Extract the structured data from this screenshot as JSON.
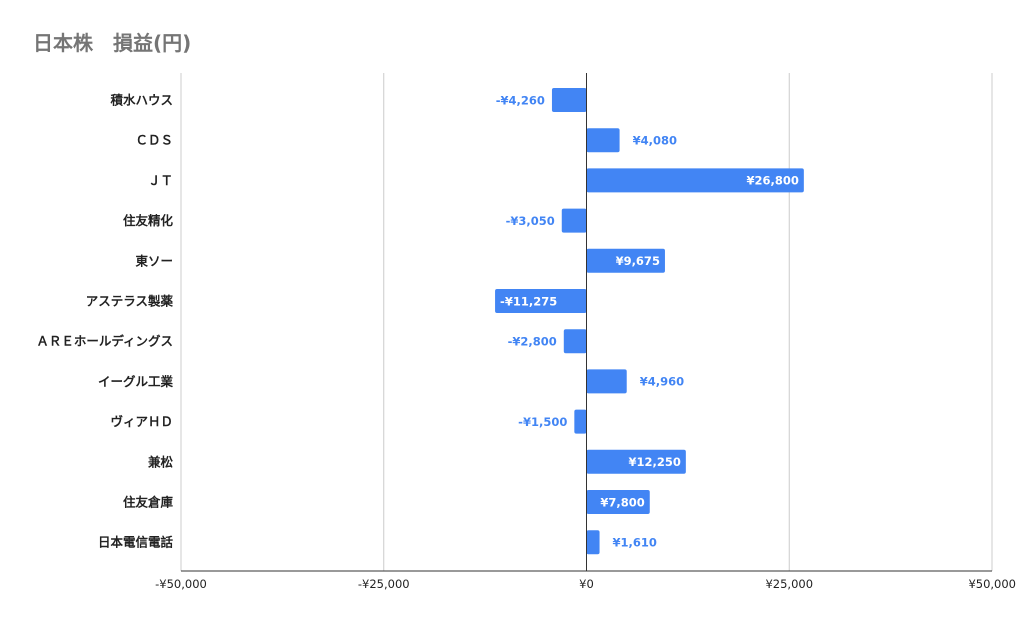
{
  "chart_data": {
    "type": "bar",
    "orientation": "horizontal",
    "title": "日本株　損益(円)",
    "categories": [
      "積水ハウス",
      "ＣＤＳ",
      "ＪＴ",
      "住友精化",
      "東ソー",
      "アステラス製薬",
      "ＡＲＥホールディングス",
      "イーグル工業",
      "ヴィアＨＤ",
      "兼松",
      "住友倉庫",
      "日本電信電話"
    ],
    "values": [
      -4260,
      4080,
      26800,
      -3050,
      9675,
      -11275,
      -2800,
      4960,
      -1500,
      12250,
      7800,
      1610
    ],
    "data_labels": [
      "-¥4,260",
      "¥4,080",
      "¥26,800",
      "-¥3,050",
      "¥9,675",
      "-¥11,275",
      "-¥2,800",
      "¥4,960",
      "-¥1,500",
      "¥12,250",
      "¥7,800",
      "¥1,610"
    ],
    "xlim": [
      -50000,
      50000
    ],
    "x_ticks": [
      -50000,
      -25000,
      0,
      25000,
      50000
    ],
    "x_tick_labels": [
      "-¥50,000",
      "-¥25,000",
      "¥0",
      "¥25,000",
      "¥50,000"
    ],
    "grid": true,
    "legend": "none",
    "colors": {
      "bar": "#4285f4",
      "label_outside": "#4285f4",
      "label_inside": "#ffffff",
      "grid": "#cccccc",
      "axis": "#333333",
      "title": "#757575"
    }
  }
}
